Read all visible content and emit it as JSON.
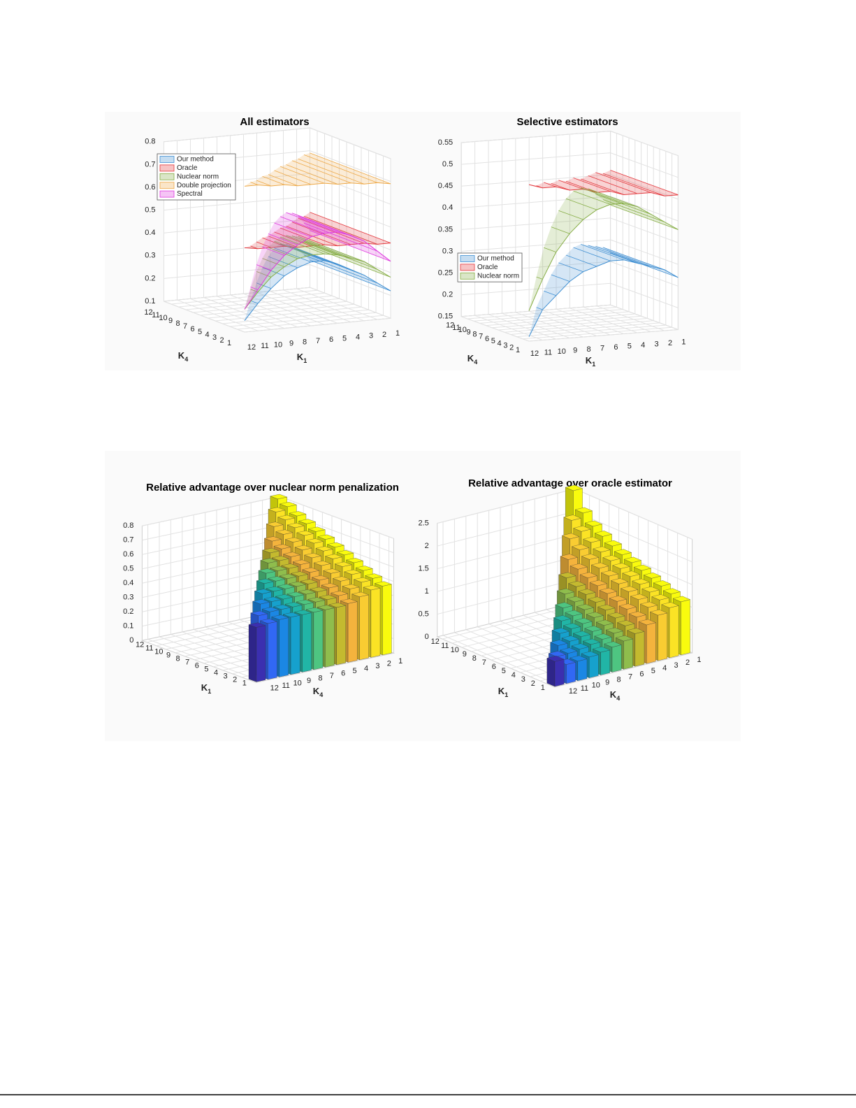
{
  "chart_data": [
    {
      "type": "surface",
      "title": "All estimators",
      "k1_label": {
        "text": "K",
        "sub": "1"
      },
      "k4_label": {
        "text": "K",
        "sub": "4"
      },
      "k1_ticks": [
        1,
        2,
        3,
        4,
        5,
        6,
        7,
        8,
        9,
        10,
        11,
        12
      ],
      "k4_ticks": [
        1,
        2,
        3,
        4,
        5,
        6,
        7,
        8,
        9,
        10,
        11,
        12
      ],
      "ylim": [
        0.1,
        0.8
      ],
      "yticks": [
        0.1,
        0.2,
        0.3,
        0.4,
        0.5,
        0.6,
        0.7,
        0.8
      ],
      "grid": true,
      "legend": "upper left",
      "x": [
        1,
        2,
        3,
        4,
        5,
        6,
        7,
        8,
        9,
        10,
        11,
        12
      ],
      "series": [
        {
          "name": "Our method",
          "color": "#3f8fd2",
          "values": [
            0.22,
            0.26,
            0.3,
            0.33,
            0.36,
            0.38,
            0.38,
            0.36,
            0.33,
            0.28,
            0.22,
            0.15
          ]
        },
        {
          "name": "Oracle",
          "color": "#e3383d",
          "values": [
            0.43,
            0.43,
            0.44,
            0.44,
            0.44,
            0.45,
            0.45,
            0.45,
            0.46,
            0.46,
            0.46,
            0.47
          ]
        },
        {
          "name": "Nuclear norm",
          "color": "#86ad45",
          "values": [
            0.28,
            0.32,
            0.36,
            0.38,
            0.4,
            0.41,
            0.41,
            0.4,
            0.37,
            0.33,
            0.27,
            0.2
          ]
        },
        {
          "name": "Double projection",
          "color": "#eea948",
          "values": [
            0.69,
            0.7,
            0.7,
            0.71,
            0.71,
            0.72,
            0.72,
            0.72,
            0.73,
            0.73,
            0.74,
            0.74
          ]
        },
        {
          "name": "Spectral",
          "color": "#df3ade",
          "values": [
            0.35,
            0.4,
            0.45,
            0.48,
            0.5,
            0.5,
            0.49,
            0.46,
            0.42,
            0.36,
            0.28,
            0.2
          ]
        }
      ]
    },
    {
      "type": "surface",
      "title": "Selective estimators",
      "k1_label": {
        "text": "K",
        "sub": "1"
      },
      "k4_label": {
        "text": "K",
        "sub": "4"
      },
      "k1_ticks": [
        1,
        2,
        3,
        4,
        5,
        6,
        7,
        8,
        9,
        10,
        11,
        12
      ],
      "k4_ticks": [
        1,
        2,
        3,
        4,
        5,
        6,
        7,
        8,
        9,
        10,
        11,
        12
      ],
      "ylim": [
        0.15,
        0.55
      ],
      "yticks": [
        0.15,
        0.2,
        0.25,
        0.3,
        0.35,
        0.4,
        0.45,
        0.5,
        0.55
      ],
      "grid": true,
      "legend": "lower left",
      "x": [
        1,
        2,
        3,
        4,
        5,
        6,
        7,
        8,
        9,
        10,
        11,
        12
      ],
      "series": [
        {
          "name": "Our method",
          "color": "#3f8fd2",
          "values": [
            0.27,
            0.29,
            0.3,
            0.31,
            0.32,
            0.32,
            0.31,
            0.3,
            0.28,
            0.25,
            0.22,
            0.16
          ]
        },
        {
          "name": "Oracle",
          "color": "#e3383d",
          "values": [
            0.46,
            0.46,
            0.47,
            0.47,
            0.47,
            0.48,
            0.48,
            0.49,
            0.49,
            0.5,
            0.5,
            0.51
          ]
        },
        {
          "name": "Nuclear norm",
          "color": "#86ad45",
          "values": [
            0.38,
            0.4,
            0.42,
            0.44,
            0.45,
            0.45,
            0.44,
            0.42,
            0.39,
            0.35,
            0.29,
            0.22
          ]
        }
      ]
    },
    {
      "type": "bar3",
      "title": "Relative advantage over nuclear norm penalization",
      "k1_label": {
        "text": "K",
        "sub": "1"
      },
      "k4_label": {
        "text": "K",
        "sub": "4"
      },
      "k1_ticks": [
        1,
        2,
        3,
        4,
        5,
        6,
        7,
        8,
        9,
        10,
        11,
        12
      ],
      "k4_ticks": [
        1,
        2,
        3,
        4,
        5,
        6,
        7,
        8,
        9,
        10,
        11,
        12
      ],
      "ylim": [
        0,
        0.8
      ],
      "yticks": [
        0,
        0.1,
        0.2,
        0.3,
        0.4,
        0.5,
        0.6,
        0.7,
        0.8
      ],
      "grid": true,
      "colors": [
        "#f9fb0e",
        "#fbe325",
        "#f9cc32",
        "#f4b33d",
        "#c4ba2f",
        "#8fbd4d",
        "#4ec581",
        "#21b5a6",
        "#16a1cd",
        "#1b87e4",
        "#3168f4",
        "#3b2fb0"
      ],
      "values": [
        [
          0.48,
          0.47,
          0.44,
          0.41,
          0.4,
          0.4,
          0.4,
          0.4,
          0.4,
          0.4,
          0.39,
          0.38
        ],
        [
          0.51,
          0.5,
          0.47,
          0.44,
          0.43,
          0.43,
          0.43,
          0.43,
          0.43,
          0.43,
          0.42
        ],
        [
          0.54,
          0.53,
          0.5,
          0.47,
          0.46,
          0.46,
          0.46,
          0.46,
          0.46,
          0.46
        ],
        [
          0.57,
          0.56,
          0.53,
          0.5,
          0.49,
          0.49,
          0.49,
          0.49,
          0.49
        ],
        [
          0.6,
          0.59,
          0.56,
          0.53,
          0.52,
          0.52,
          0.52,
          0.52
        ],
        [
          0.63,
          0.62,
          0.59,
          0.56,
          0.55,
          0.55,
          0.55
        ],
        [
          0.66,
          0.65,
          0.62,
          0.59,
          0.58,
          0.58
        ],
        [
          0.69,
          0.68,
          0.65,
          0.62,
          0.61
        ],
        [
          0.72,
          0.71,
          0.68,
          0.65
        ],
        [
          0.75,
          0.74,
          0.71
        ],
        [
          0.79,
          0.77
        ],
        [
          0.82
        ]
      ]
    },
    {
      "type": "bar3",
      "title": "Relative advantage over oracle estimator",
      "k1_label": {
        "text": "K",
        "sub": "1"
      },
      "k4_label": {
        "text": "K",
        "sub": "4"
      },
      "k1_ticks": [
        1,
        2,
        3,
        4,
        5,
        6,
        7,
        8,
        9,
        10,
        11,
        12
      ],
      "k4_ticks": [
        1,
        2,
        3,
        4,
        5,
        6,
        7,
        8,
        9,
        10,
        11,
        12
      ],
      "ylim": [
        0,
        2.5
      ],
      "yticks": [
        0,
        0.5,
        1,
        1.5,
        2,
        2.5
      ],
      "grid": true,
      "colors": [
        "#f9fb0e",
        "#fbe325",
        "#f9cc32",
        "#f4b33d",
        "#c4ba2f",
        "#8fbd4d",
        "#4ec581",
        "#21b5a6",
        "#16a1cd",
        "#1b87e4",
        "#3168f4",
        "#3b2fb0"
      ],
      "values": [
        [
          1.17,
          1.1,
          1.0,
          0.85,
          0.72,
          0.62,
          0.55,
          0.5,
          0.46,
          0.43,
          0.42,
          0.55
        ],
        [
          1.25,
          1.18,
          1.08,
          0.93,
          0.8,
          0.7,
          0.63,
          0.58,
          0.54,
          0.51,
          0.5
        ],
        [
          1.33,
          1.26,
          1.16,
          1.01,
          0.88,
          0.78,
          0.71,
          0.66,
          0.62,
          0.59
        ],
        [
          1.41,
          1.34,
          1.24,
          1.09,
          0.96,
          0.86,
          0.79,
          0.74,
          0.7
        ],
        [
          1.49,
          1.42,
          1.32,
          1.17,
          1.04,
          0.94,
          0.87,
          0.82
        ],
        [
          1.57,
          1.5,
          1.4,
          1.25,
          1.12,
          1.02,
          0.95
        ],
        [
          1.65,
          1.58,
          1.48,
          1.33,
          1.2,
          1.1
        ],
        [
          1.75,
          1.68,
          1.58,
          1.43,
          1.3
        ],
        [
          1.87,
          1.8,
          1.7,
          1.55
        ],
        [
          2.0,
          1.95,
          1.85
        ],
        [
          2.2,
          2.1
        ],
        [
          2.6
        ]
      ]
    }
  ]
}
